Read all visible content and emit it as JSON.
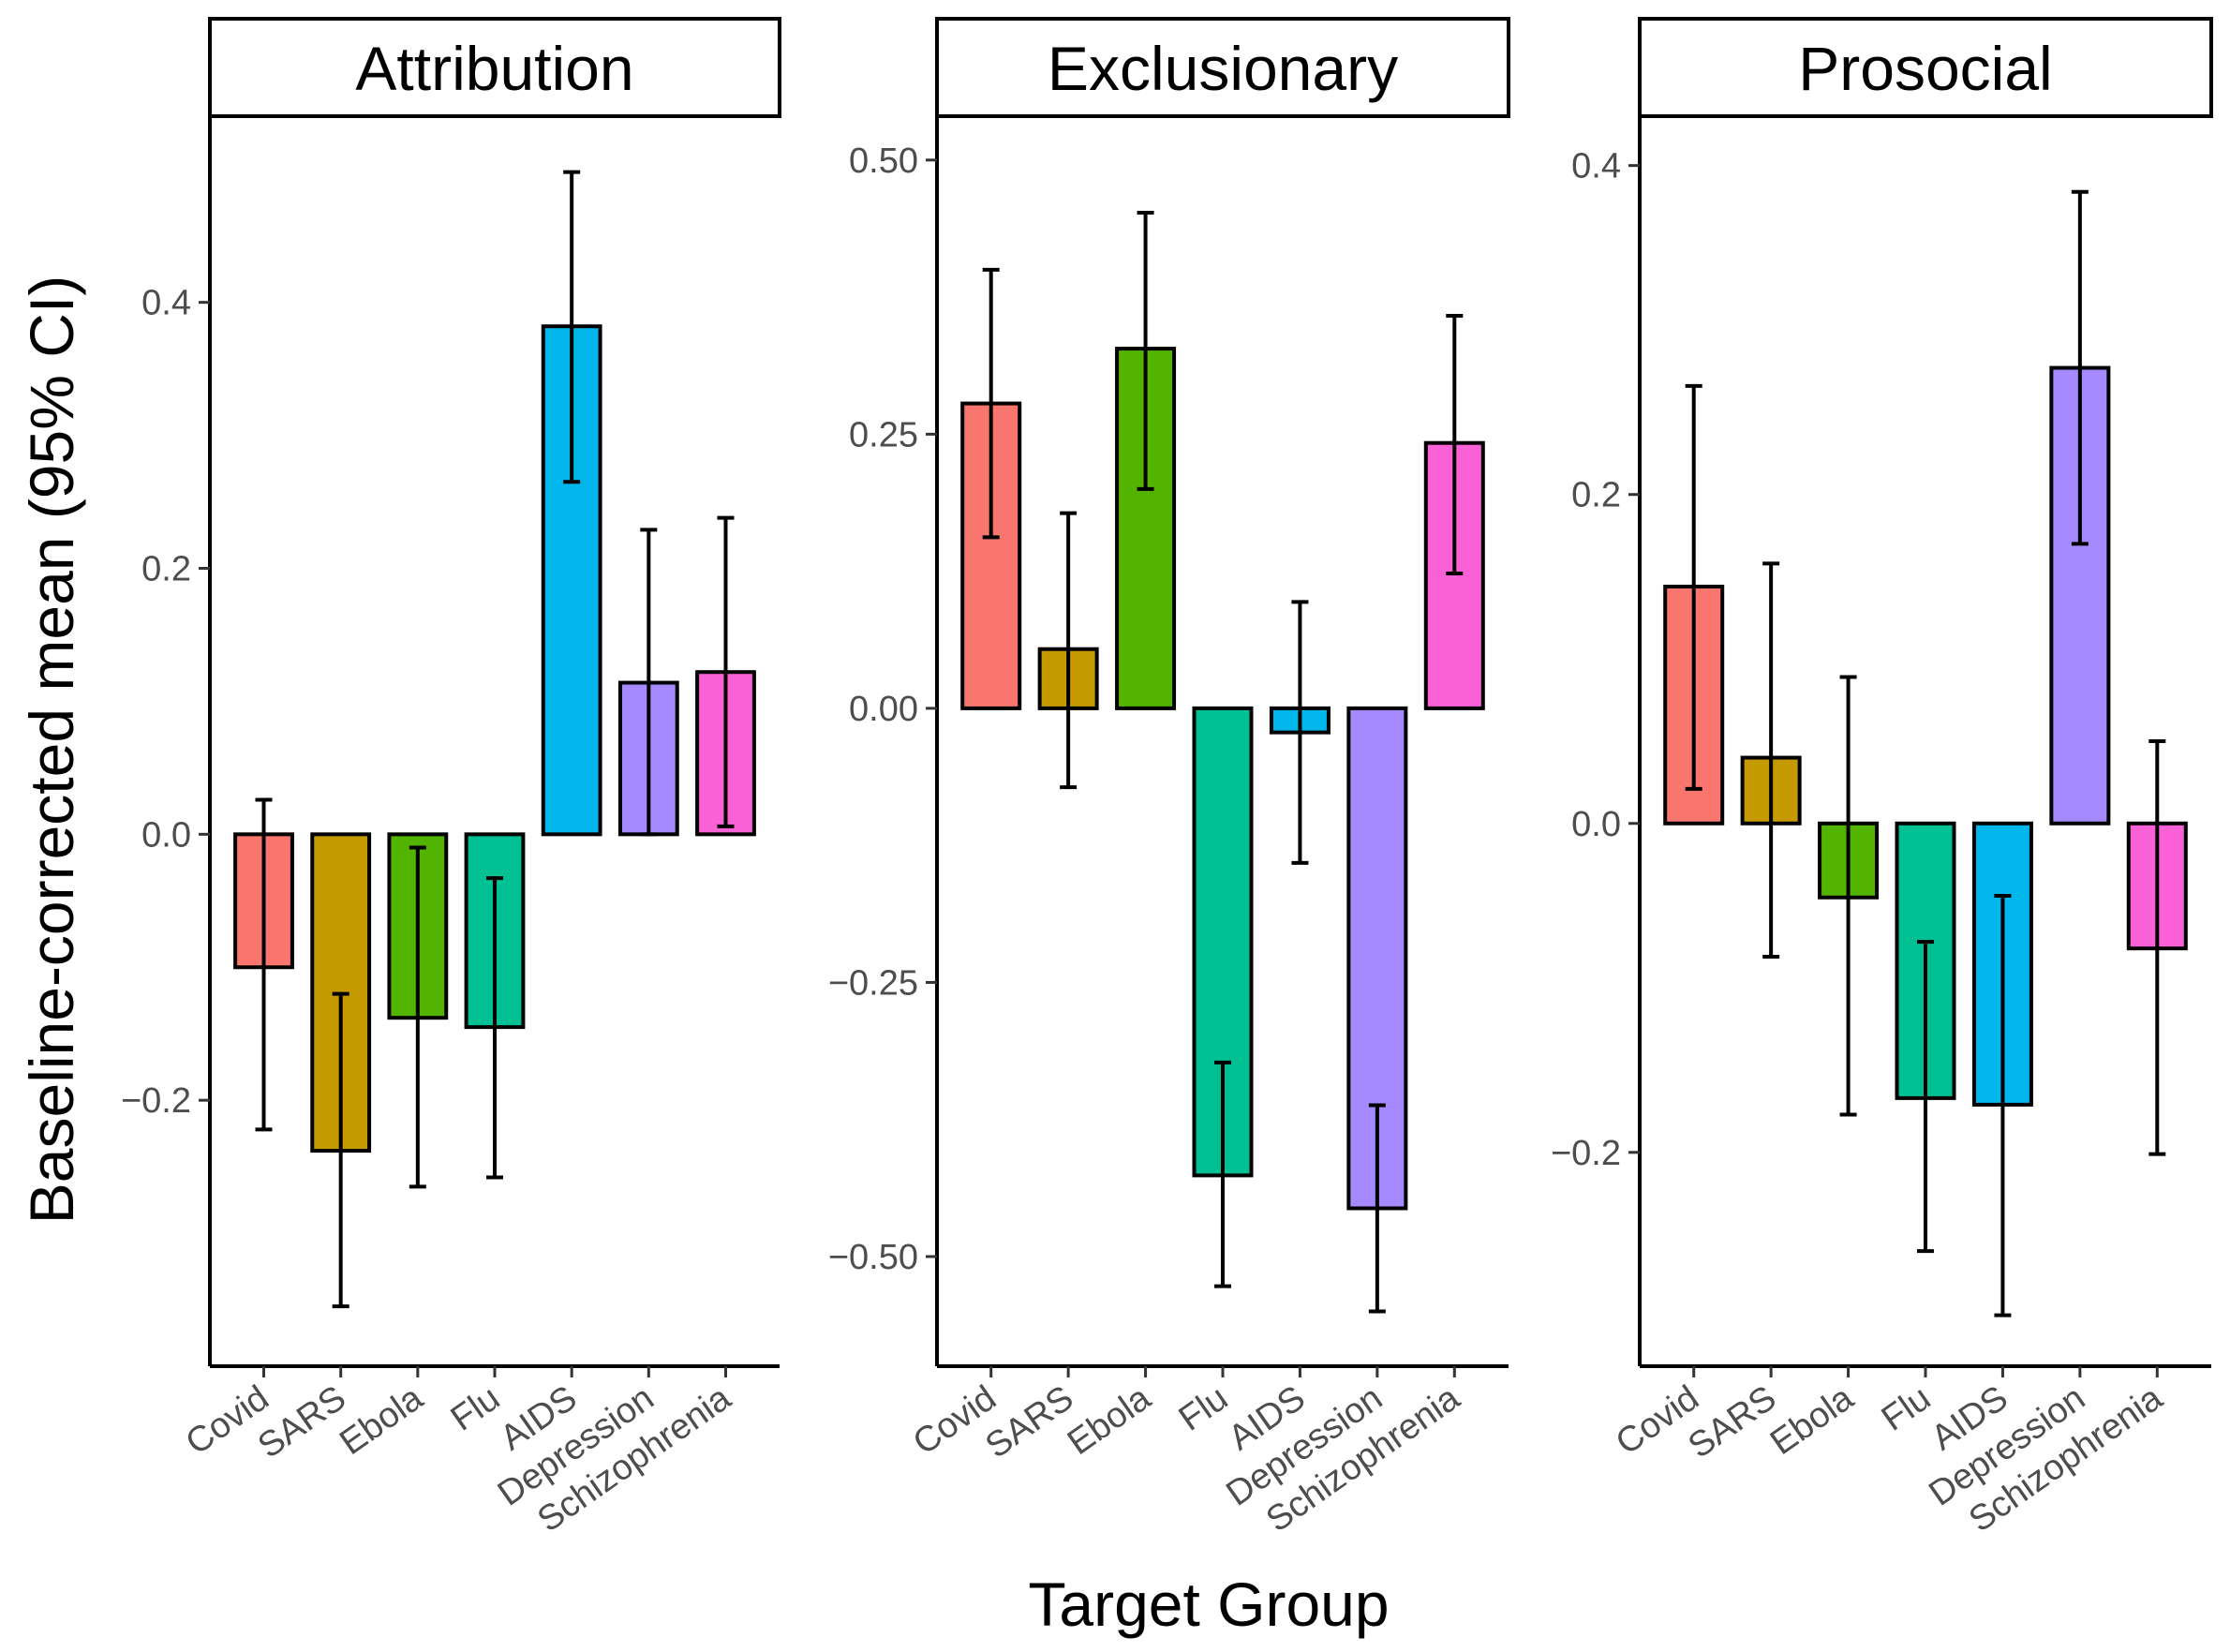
{
  "chart_data": {
    "type": "bar",
    "xlabel": "Target Group",
    "ylabel": "Baseline-corrected mean (95% CI)",
    "categories": [
      "Covid",
      "SARS",
      "Ebola",
      "Flu",
      "AIDS",
      "Depression",
      "Schizophrenia"
    ],
    "colors": [
      "#F8766D",
      "#C49A00",
      "#53B400",
      "#00C094",
      "#00B6EB",
      "#A58AFF",
      "#FB61D7"
    ],
    "panels": [
      {
        "title": "Attribution",
        "ylim": [
          -0.4,
          0.54
        ],
        "yticks": [
          -0.2,
          0.0,
          0.2,
          0.4
        ],
        "tick_labels": [
          "−0.2",
          "0.0",
          "0.2",
          "0.4"
        ],
        "values": [
          -0.1,
          -0.238,
          -0.138,
          -0.145,
          0.382,
          0.114,
          0.122
        ],
        "ci_low": [
          -0.222,
          -0.355,
          -0.265,
          -0.258,
          0.265,
          0.0,
          0.006
        ],
        "ci_high": [
          0.026,
          -0.12,
          -0.01,
          -0.033,
          0.498,
          0.229,
          0.238
        ]
      },
      {
        "title": "Exclusionary",
        "ylim": [
          -0.6,
          0.54
        ],
        "yticks": [
          -0.5,
          -0.25,
          0.0,
          0.25,
          0.5
        ],
        "tick_labels": [
          "−0.50",
          "−0.25",
          "0.00",
          "0.25",
          "0.50"
        ],
        "values": [
          0.278,
          0.054,
          0.328,
          -0.426,
          -0.022,
          -0.456,
          0.242
        ],
        "ci_low": [
          0.156,
          -0.072,
          0.2,
          -0.527,
          -0.141,
          -0.55,
          0.123
        ],
        "ci_high": [
          0.4,
          0.178,
          0.452,
          -0.323,
          0.097,
          -0.362,
          0.358
        ]
      },
      {
        "title": "Prosocial",
        "ylim": [
          -0.33,
          0.43
        ],
        "yticks": [
          -0.2,
          0.0,
          0.2,
          0.4
        ],
        "tick_labels": [
          "−0.2",
          "0.0",
          "0.2",
          "0.4"
        ],
        "values": [
          0.144,
          0.04,
          -0.045,
          -0.167,
          -0.171,
          0.277,
          -0.076
        ],
        "ci_low": [
          0.021,
          -0.081,
          -0.177,
          -0.26,
          -0.299,
          0.17,
          -0.201
        ],
        "ci_high": [
          0.266,
          0.158,
          0.089,
          -0.072,
          -0.044,
          0.384,
          0.05
        ]
      }
    ]
  }
}
